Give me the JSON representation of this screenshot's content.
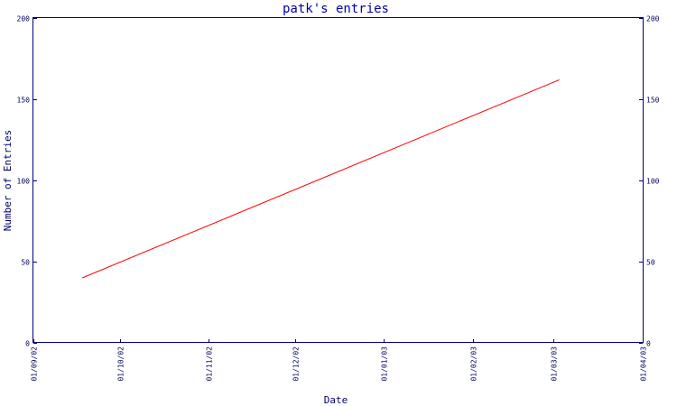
{
  "chart_data": {
    "type": "line",
    "title": "patk's entries",
    "xlabel": "Date",
    "ylabel": "Number of Entries",
    "ylim": [
      0,
      200
    ],
    "yticks": [
      "0",
      "50",
      "100",
      "150",
      "200"
    ],
    "xlim": [
      "2002-09-01",
      "2003-04-01"
    ],
    "xticks": [
      "01/09/02",
      "01/10/02",
      "01/11/02",
      "01/12/02",
      "01/01/03",
      "01/02/03",
      "01/03/03",
      "01/04/03"
    ],
    "grid": false,
    "legend": "none",
    "series": [
      {
        "color": "#ff0000",
        "points": [
          {
            "x": "2002-09-18",
            "y": 40
          },
          {
            "x": "2003-03-03",
            "y": 162
          }
        ]
      }
    ]
  }
}
